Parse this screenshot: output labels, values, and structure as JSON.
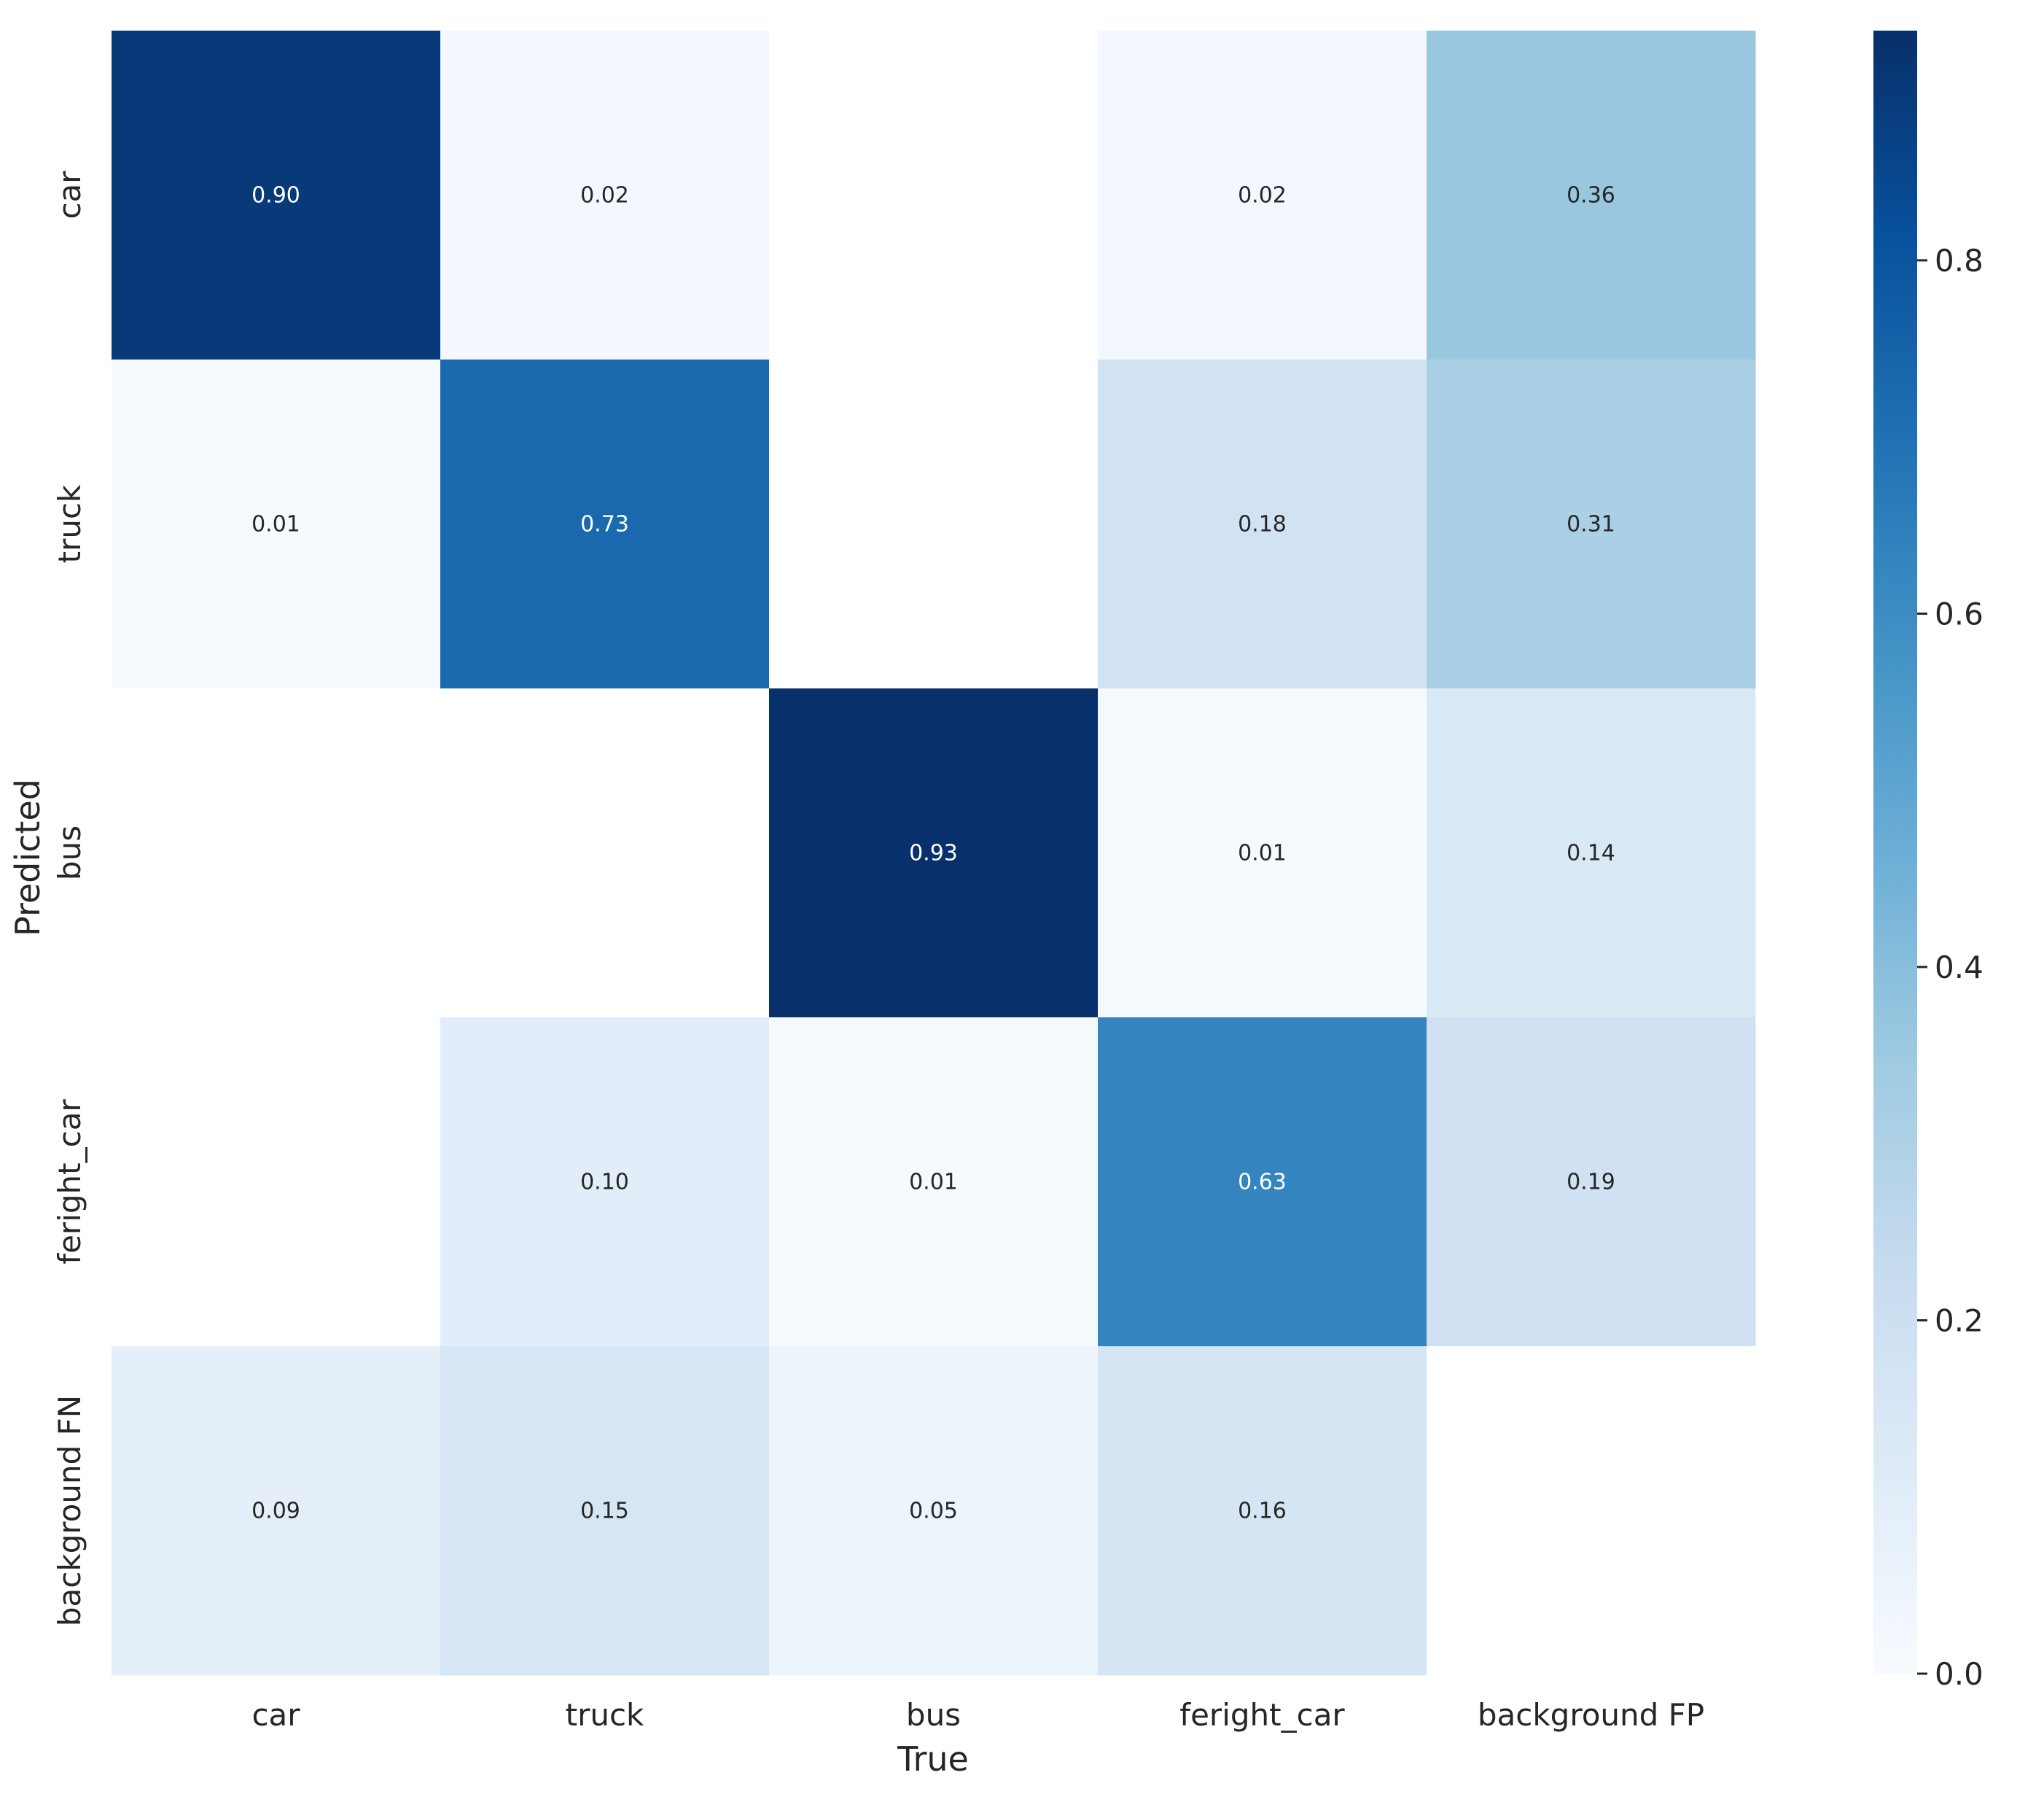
{
  "chart_data": {
    "type": "heatmap",
    "title": "",
    "xlabel": "True",
    "ylabel": "Predicted",
    "x_categories": [
      "car",
      "truck",
      "bus",
      "feright_car",
      "background FP"
    ],
    "y_categories": [
      "car",
      "truck",
      "bus",
      "feright_car",
      "background FN"
    ],
    "values": [
      [
        0.9,
        0.02,
        null,
        0.02,
        0.36
      ],
      [
        0.01,
        0.73,
        null,
        0.18,
        0.31
      ],
      [
        null,
        null,
        0.93,
        0.01,
        0.14
      ],
      [
        null,
        0.1,
        0.01,
        0.63,
        0.19
      ],
      [
        0.09,
        0.15,
        0.05,
        0.16,
        null
      ]
    ],
    "value_format": "0.00",
    "colormap": "Blues",
    "colorbar": {
      "range": [
        0.0,
        0.93
      ],
      "ticks": [
        0.0,
        0.2,
        0.4,
        0.6,
        0.8
      ],
      "tick_labels": [
        "0.0",
        "0.2",
        "0.4",
        "0.6",
        "0.8"
      ]
    },
    "colors": {
      "low": "#f7fbff",
      "high": "#08306b",
      "empty": "#ffffff",
      "text_dark": "#262626",
      "text_light": "#ffffff"
    }
  }
}
